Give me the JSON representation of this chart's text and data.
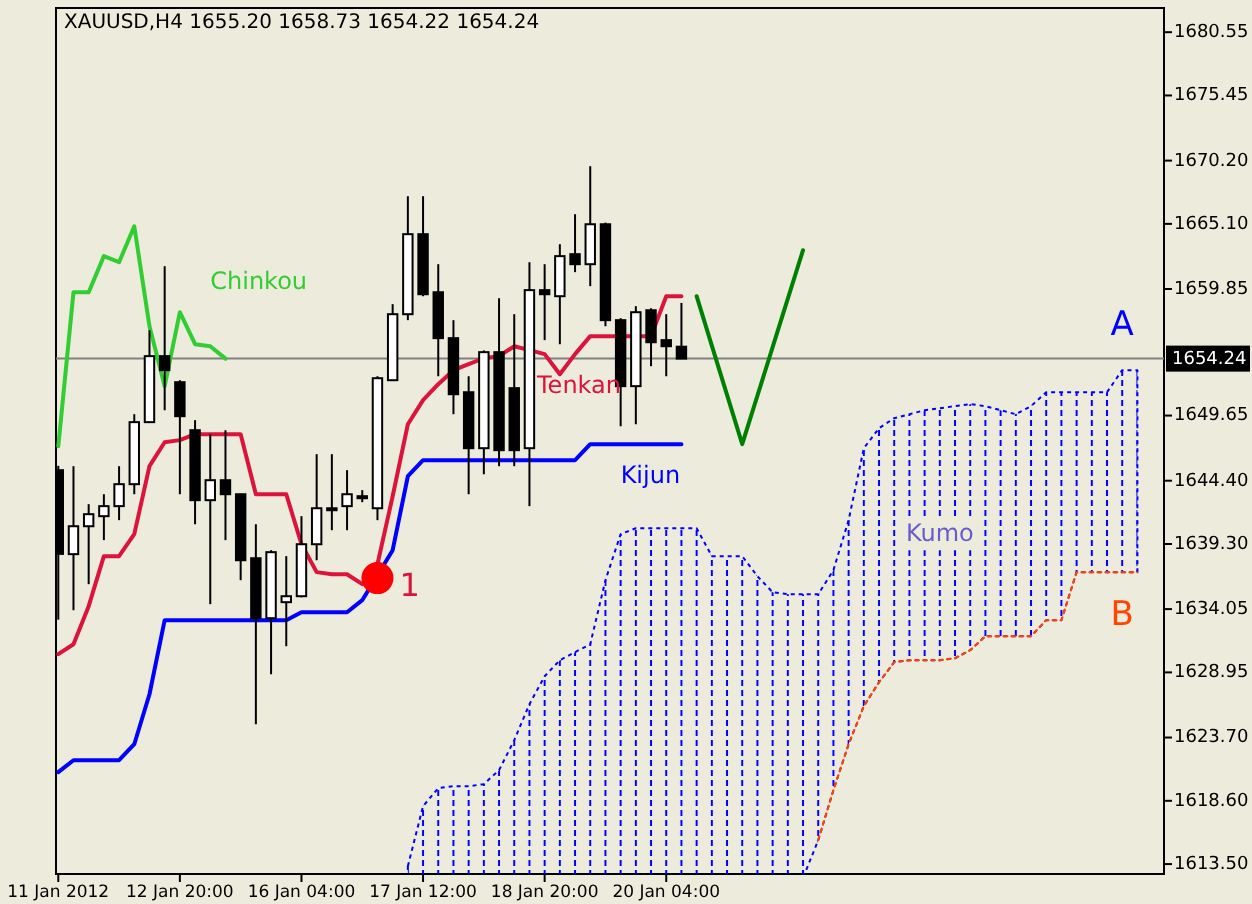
{
  "chart_data": {
    "type": "candlestick",
    "title": "XAUUSD,H4  1655.20 1658.73 1654.22 1654.24",
    "categories": [
      "11 Jan 2012",
      null,
      null,
      null,
      null,
      null,
      null,
      null,
      "12 Jan 20:00",
      null,
      null,
      null,
      null,
      null,
      null,
      null,
      "16 Jan 04:00",
      null,
      null,
      null,
      null,
      null,
      null,
      null,
      "17 Jan 12:00",
      null,
      null,
      null,
      null,
      null,
      null,
      null,
      "18 Jan 20:00",
      null,
      null,
      null,
      null,
      null,
      null,
      null,
      "20 Jan 04:00",
      null,
      null,
      null,
      null,
      null,
      null,
      null,
      null,
      null,
      null,
      null,
      null,
      null,
      null,
      null,
      null,
      null,
      null,
      null,
      null,
      null,
      null,
      null,
      null,
      null,
      null,
      null,
      null,
      null,
      null,
      null,
      null
    ],
    "ohlc": [
      [
        1645.25,
        1645.6,
        1633.2,
        1638.5
      ],
      [
        1638.48,
        1645.57,
        1633.96,
        1640.73
      ],
      [
        1640.73,
        1642.51,
        1636.06,
        1641.7
      ],
      [
        1641.54,
        1643.31,
        1639.61,
        1642.35
      ],
      [
        1642.35,
        1645.57,
        1641.22,
        1644.12
      ],
      [
        1644.12,
        1649.76,
        1643.31,
        1649.12
      ],
      [
        1649.12,
        1656.53,
        1649.12,
        1654.44
      ],
      [
        1654.44,
        1661.69,
        1650.08,
        1653.31
      ],
      [
        1652.34,
        1652.5,
        1643.31,
        1649.6
      ],
      [
        1648.47,
        1649.28,
        1640.89,
        1642.83
      ],
      [
        1642.83,
        1648.15,
        1634.45,
        1644.44
      ],
      [
        1644.44,
        1648.47,
        1639.61,
        1643.31
      ],
      [
        1643.31,
        1643.31,
        1636.38,
        1637.99
      ],
      [
        1638.15,
        1640.89,
        1624.77,
        1633.32
      ],
      [
        1633.32,
        1638.8,
        1628.8,
        1638.64
      ],
      [
        1634.61,
        1638.32,
        1631.06,
        1635.09
      ],
      [
        1635.09,
        1641.54,
        1635.0,
        1639.28
      ],
      [
        1639.28,
        1646.54,
        1637.99,
        1642.18
      ],
      [
        1642.18,
        1646.54,
        1640.41,
        1642.18
      ],
      [
        1642.35,
        1645.25,
        1640.41,
        1643.31
      ],
      [
        1643.15,
        1643.64,
        1642.67,
        1643.15
      ],
      [
        1642.18,
        1652.82,
        1641.22,
        1652.66
      ],
      [
        1652.5,
        1658.63,
        1652.5,
        1657.82
      ],
      [
        1657.82,
        1667.33,
        1657.34,
        1664.27
      ],
      [
        1664.27,
        1667.33,
        1659.27,
        1659.43
      ],
      [
        1659.59,
        1661.85,
        1652.82,
        1655.89
      ],
      [
        1655.89,
        1657.34,
        1649.76,
        1651.37
      ],
      [
        1651.53,
        1652.82,
        1643.31,
        1647.02
      ],
      [
        1647.02,
        1654.9,
        1644.92,
        1654.76
      ],
      [
        1654.76,
        1659.11,
        1645.57,
        1646.86
      ],
      [
        1651.86,
        1657.82,
        1645.57,
        1646.86
      ],
      [
        1647.02,
        1662.01,
        1642.35,
        1659.76
      ],
      [
        1659.76,
        1661.85,
        1655.73,
        1659.43
      ],
      [
        1659.27,
        1663.46,
        1655.4,
        1662.5
      ],
      [
        1662.66,
        1665.88,
        1661.21,
        1661.85
      ],
      [
        1661.85,
        1669.75,
        1660.08,
        1665.07
      ],
      [
        1665.07,
        1665.2,
        1656.85,
        1657.34
      ],
      [
        1657.34,
        1657.5,
        1648.79,
        1652.02
      ],
      [
        1652.02,
        1658.47,
        1648.95,
        1657.98
      ],
      [
        1658.14,
        1658.3,
        1653.63,
        1655.56
      ],
      [
        1655.73,
        1657.82,
        1652.82,
        1655.24
      ],
      [
        1655.2,
        1658.73,
        1654.22,
        1654.24
      ],
      null,
      null,
      null,
      null,
      null,
      null,
      null,
      null,
      null,
      null,
      null,
      null,
      null,
      null,
      null,
      null,
      null,
      null,
      null,
      null,
      null,
      null,
      null,
      null,
      null,
      null,
      null,
      null,
      null,
      null,
      null
    ],
    "series": [
      {
        "name": "Tenkan",
        "type": "line",
        "color": "#dc143c",
        "values": [
          1630.42,
          1631.22,
          1634.29,
          1638.32,
          1638.32,
          1640.09,
          1645.57,
          1647.5,
          1647.67,
          1648.15,
          1648.15,
          1648.15,
          1648.15,
          1643.31,
          1643.31,
          1643.31,
          1639.28,
          1637.03,
          1636.86,
          1636.86,
          1636.06,
          1637.67,
          1643.15,
          1648.95,
          1650.89,
          1652.18,
          1653.31,
          1653.79,
          1654.27,
          1654.44,
          1655.24,
          1654.92,
          1654.6,
          1652.98,
          1654.6,
          1656.05,
          1656.05,
          1656.05,
          1656.05,
          1656.05,
          1659.27,
          1659.27,
          null,
          null,
          null,
          null,
          null,
          null,
          null,
          null,
          null,
          null,
          null,
          null,
          null,
          null,
          null,
          null,
          null,
          null,
          null,
          null,
          null,
          null,
          null,
          null,
          null,
          null,
          null,
          null,
          null,
          null,
          null
        ]
      },
      {
        "name": "Kijun",
        "type": "line",
        "color": "#0000ff",
        "values": [
          1620.91,
          1621.87,
          1621.87,
          1621.87,
          1621.87,
          1623.16,
          1627.19,
          1633.16,
          1633.16,
          1633.16,
          1633.16,
          1633.16,
          1633.16,
          1633.16,
          1633.16,
          1633.16,
          1633.8,
          1633.8,
          1633.8,
          1633.8,
          1634.77,
          null,
          1638.8,
          1644.76,
          1646.05,
          1646.05,
          1646.05,
          1646.05,
          1646.05,
          1646.05,
          1646.05,
          1646.05,
          1646.05,
          1646.05,
          1646.05,
          1647.34,
          1647.34,
          1647.34,
          1647.34,
          1647.34,
          1647.34,
          1647.34,
          null,
          null,
          null,
          null,
          null,
          null,
          null,
          null,
          null,
          null,
          null,
          null,
          null,
          null,
          null,
          null,
          null,
          null,
          null,
          null,
          null,
          null,
          null,
          null,
          null,
          null,
          null,
          null,
          null,
          null,
          null
        ]
      },
      {
        "name": "Chinkou",
        "type": "line",
        "color": "#32cd32",
        "values": [
          1647.18,
          1659.59,
          1659.59,
          1662.5,
          1662.01,
          1664.91,
          1656.85,
          1652.02,
          1657.98,
          1655.4,
          1655.24,
          1654.24,
          null,
          null,
          null,
          null,
          null,
          null,
          null,
          null,
          null,
          null,
          null,
          null,
          null,
          null,
          null,
          null,
          null,
          null,
          null,
          null,
          null,
          null,
          null,
          null,
          null,
          null,
          null,
          null,
          null,
          null,
          null,
          null,
          null,
          null,
          null,
          null,
          null,
          null,
          null,
          null,
          null,
          null,
          null,
          null,
          null,
          null,
          null,
          null,
          null,
          null,
          null,
          null,
          null,
          null,
          null,
          null,
          null,
          null,
          null,
          null,
          null
        ]
      },
      {
        "name": "A",
        "type": "area",
        "color": "#0000ff",
        "line_style": "dotted",
        "values": [
          null,
          null,
          null,
          null,
          null,
          null,
          null,
          null,
          null,
          null,
          null,
          null,
          null,
          null,
          null,
          null,
          null,
          null,
          null,
          null,
          null,
          null,
          null,
          1613.33,
          1618.17,
          1619.62,
          1619.78,
          1619.78,
          1619.94,
          1621.07,
          1623.49,
          1626.39,
          1628.64,
          1629.93,
          1630.58,
          1631.22,
          1636.38,
          1640.09,
          1640.57,
          1640.57,
          1640.57,
          1640.57,
          1640.57,
          1638.32,
          1638.32,
          1638.32,
          1636.7,
          1635.41,
          1635.25,
          1635.25,
          1635.25,
          1637.19,
          1641.22,
          1647.02,
          1648.63,
          1649.44,
          1649.76,
          1650.08,
          1650.24,
          1650.41,
          1650.57,
          1650.41,
          1650.08,
          1649.76,
          1650.41,
          1651.53,
          1651.53,
          1651.53,
          1651.53,
          1651.53,
          1653.31,
          1653.31,
          null
        ]
      },
      {
        "name": "B",
        "type": "line",
        "color": "#ff4500",
        "line_style": "dotted",
        "values": [
          null,
          null,
          null,
          null,
          null,
          null,
          null,
          null,
          null,
          null,
          null,
          null,
          null,
          null,
          null,
          null,
          null,
          null,
          null,
          null,
          null,
          null,
          null,
          null,
          null,
          null,
          null,
          null,
          null,
          null,
          null,
          null,
          null,
          null,
          null,
          null,
          null,
          null,
          null,
          null,
          null,
          null,
          null,
          null,
          null,
          null,
          null,
          null,
          null,
          null,
          1615.43,
          1619.46,
          1623.16,
          1626.23,
          1628.16,
          1629.77,
          1629.93,
          1629.93,
          1629.93,
          1630.09,
          1630.74,
          1631.87,
          1631.87,
          1631.87,
          1631.87,
          1633.16,
          1633.16,
          1637.03,
          1637.03,
          1637.03,
          1637.03,
          1637.03,
          null
        ]
      },
      {
        "type": "line",
        "color": "#008000",
        "values": [
          null,
          null,
          null,
          null,
          null,
          null,
          null,
          null,
          null,
          null,
          null,
          null,
          null,
          null,
          null,
          null,
          null,
          null,
          null,
          null,
          null,
          null,
          null,
          null,
          null,
          null,
          null,
          null,
          null,
          null,
          null,
          null,
          null,
          null,
          null,
          null,
          null,
          null,
          null,
          null,
          null,
          null,
          1659.27,
          1655.29,
          1651.32,
          1647.35,
          1651.25,
          1655.16,
          1659.07,
          1662.98,
          null,
          null,
          null,
          null,
          null,
          null,
          null,
          null,
          null,
          null,
          null,
          null,
          null,
          null,
          null,
          null,
          null,
          null,
          null,
          null,
          null,
          null,
          null
        ]
      },
      {
        "type": "scatter",
        "color": "#ff0000",
        "marker": "circle",
        "values": [
          null,
          null,
          null,
          null,
          null,
          null,
          null,
          null,
          null,
          null,
          null,
          null,
          null,
          null,
          null,
          null,
          null,
          null,
          null,
          null,
          null,
          1636.55,
          null,
          null,
          null,
          null,
          null,
          null,
          null,
          null,
          null,
          null,
          null,
          null,
          null,
          null,
          null,
          null,
          null,
          null,
          null,
          null,
          null,
          null,
          null,
          null,
          null,
          null,
          null,
          null,
          null,
          null,
          null,
          null,
          null,
          null,
          null,
          null,
          null,
          null,
          null,
          null,
          null,
          null,
          null,
          null,
          null,
          null,
          null,
          null,
          null,
          null,
          null
        ]
      }
    ],
    "annotations": [
      "1",
      "Kumo"
    ],
    "ref_lines": [
      {
        "axis": "y",
        "value": 1654.24,
        "label": "1654.24",
        "color": "#808080"
      }
    ],
    "ylim": [
      1612.7,
      1682.5
    ],
    "yticks": [
      {
        "value": 1613.5,
        "label": "1613.50"
      },
      {
        "value": 1618.6,
        "label": "1618.60"
      },
      {
        "value": 1623.7,
        "label": "1623.70"
      },
      1628.95,
      1634.05,
      {
        "value": 1639.3,
        "label": "1639.30"
      },
      {
        "value": 1644.4,
        "label": "1644.40"
      },
      1649.65,
      1659.85,
      {
        "value": 1665.1,
        "label": "1665.10"
      },
      {
        "value": 1670.2,
        "label": "1670.20"
      },
      1675.45,
      1680.55
    ]
  }
}
